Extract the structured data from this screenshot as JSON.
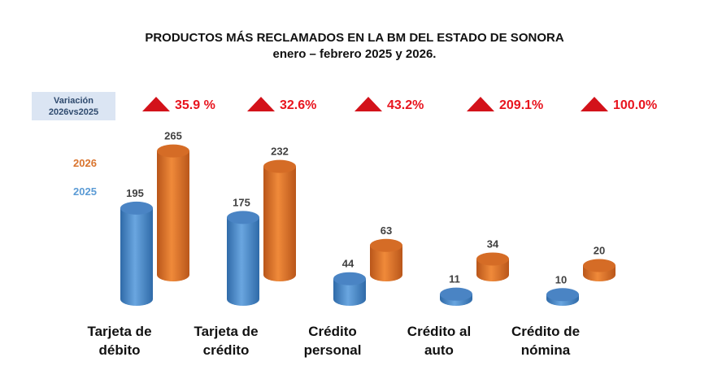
{
  "chart_data": {
    "type": "bar",
    "title": "PRODUCTOS MÁS RECLAMADOS EN LA BM DEL ESTADO DE SONORA",
    "subtitle": "enero – febrero 2025 y 2026.",
    "categories": [
      "Tarjeta de débito",
      "Tarjeta de crédito",
      "Crédito personal",
      "Crédito al auto",
      "Crédito de nómina"
    ],
    "category_lines": [
      [
        "Tarjeta de",
        "débito"
      ],
      [
        "Tarjeta de",
        "crédito"
      ],
      [
        "Crédito",
        "personal"
      ],
      [
        "Crédito al",
        "auto"
      ],
      [
        "Crédito de",
        "nómina"
      ]
    ],
    "series": [
      {
        "name": "2025",
        "color": "#4f8fd0",
        "values": [
          195,
          175,
          44,
          11,
          10
        ]
      },
      {
        "name": "2026",
        "color": "#e8782a",
        "values": [
          265,
          232,
          63,
          34,
          20
        ]
      }
    ],
    "variation_label": [
      "Variación",
      "2026vs2025"
    ],
    "variation": [
      "35.9 %",
      "32.6%",
      "43.2%",
      "209.1%",
      "100.0%"
    ],
    "legend": [
      "2026",
      "2025"
    ]
  }
}
